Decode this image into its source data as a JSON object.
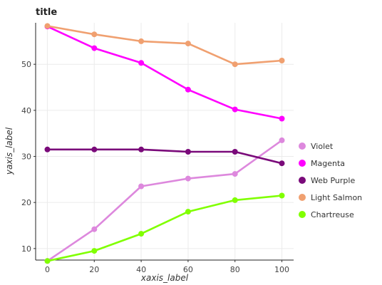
{
  "chart_data": {
    "type": "line",
    "title": "title",
    "xlabel": "xaxis_label",
    "ylabel": "yaxis_label",
    "xlim": [
      -5,
      105
    ],
    "ylim": [
      7.5,
      59
    ],
    "x_ticks": [
      0,
      20,
      40,
      60,
      80,
      100
    ],
    "y_ticks": [
      10,
      20,
      30,
      40,
      50
    ],
    "grid": true,
    "legend_position": "right",
    "x": [
      0,
      20,
      40,
      60,
      80,
      100
    ],
    "series": [
      {
        "name": "Violet",
        "color": "#dd88dd",
        "values": [
          7.3,
          14.2,
          23.5,
          25.2,
          26.2,
          33.5
        ]
      },
      {
        "name": "Magenta",
        "color": "#ff00ff",
        "values": [
          58.2,
          53.5,
          50.3,
          44.5,
          40.2,
          38.2
        ]
      },
      {
        "name": "Web Purple",
        "color": "#7a0a7a",
        "values": [
          31.5,
          31.5,
          31.5,
          31.0,
          31.0,
          28.5
        ]
      },
      {
        "name": "Light Salmon",
        "color": "#f0a070",
        "values": [
          58.3,
          56.5,
          55.0,
          54.5,
          50.0,
          50.8
        ]
      },
      {
        "name": "Chartreuse",
        "color": "#80ff00",
        "values": [
          7.3,
          9.5,
          13.2,
          18.0,
          20.5,
          21.5
        ]
      }
    ],
    "legend_order": [
      "Violet",
      "Magenta",
      "Web Purple",
      "Light Salmon",
      "Chartreuse"
    ]
  }
}
